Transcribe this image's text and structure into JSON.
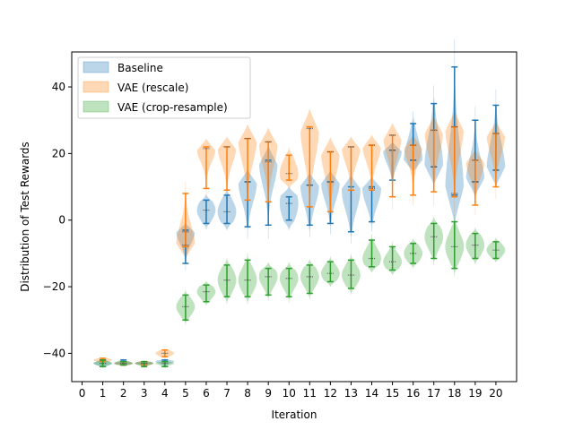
{
  "chart_data": {
    "type": "violin",
    "xlabel": "Iteration",
    "ylabel": "Distribution of Test Rewards",
    "xlim": [
      -0.5,
      21.0
    ],
    "ylim": [
      -48.5,
      50.5
    ],
    "x_ticks": [
      0,
      1,
      2,
      3,
      4,
      5,
      6,
      7,
      8,
      9,
      10,
      11,
      12,
      13,
      14,
      15,
      16,
      17,
      18,
      19,
      20
    ],
    "y_ticks": [
      -40,
      -20,
      0,
      20,
      40
    ],
    "grid": false,
    "legend_position": "top-left",
    "series": [
      {
        "name": "Baseline",
        "color": "#1f77b4",
        "offset": 0.0,
        "iterations": [
          1,
          2,
          3,
          4,
          5,
          6,
          7,
          8,
          9,
          10,
          11,
          12,
          13,
          14,
          15,
          16,
          17,
          18,
          19,
          20
        ],
        "min": [
          -44.0,
          -43.5,
          -43.5,
          -44.0,
          -13.0,
          -1.0,
          -1.0,
          -2.0,
          -1.5,
          0.0,
          -1.5,
          -1.0,
          -3.5,
          -0.5,
          12.0,
          18.0,
          16.0,
          7.5,
          11.5,
          15.0
        ],
        "median": [
          -43.0,
          -43.0,
          -43.0,
          -42.5,
          -3.5,
          3.0,
          2.5,
          11.5,
          17.5,
          5.0,
          10.5,
          11.5,
          9.0,
          9.5,
          21.0,
          18.0,
          16.0,
          8.0,
          11.5,
          15.0
        ],
        "max": [
          -42.0,
          -42.0,
          -42.5,
          -42.0,
          -3.0,
          6.0,
          7.5,
          11.5,
          18.0,
          7.0,
          10.5,
          11.5,
          10.0,
          10.0,
          21.0,
          29.0,
          35.0,
          46.0,
          30.0,
          34.5
        ],
        "spread": [
          0.6,
          0.6,
          0.5,
          0.6,
          3.5,
          3.0,
          3.5,
          6.0,
          7.0,
          5.0,
          6.0,
          5.5,
          6.0,
          5.0,
          4.0,
          6.0,
          9.0,
          14.0,
          7.0,
          8.0
        ]
      },
      {
        "name": "VAE (rescale)",
        "color": "#ff7f0e",
        "offset": 0.0,
        "iterations": [
          1,
          2,
          3,
          4,
          5,
          6,
          7,
          8,
          9,
          10,
          11,
          12,
          13,
          14,
          15,
          16,
          17,
          18,
          19,
          20
        ],
        "min": [
          -42.5,
          -43.5,
          -43.5,
          -41.0,
          -8.0,
          9.5,
          9.0,
          6.0,
          5.5,
          12.0,
          4.0,
          2.5,
          9.0,
          9.0,
          7.0,
          7.5,
          8.5,
          7.0,
          4.5,
          10.0
        ],
        "median": [
          -42.0,
          -43.0,
          -43.0,
          -40.0,
          -7.5,
          21.5,
          22.0,
          24.5,
          23.5,
          14.0,
          27.5,
          20.5,
          22.0,
          22.5,
          25.5,
          22.5,
          27.0,
          28.0,
          18.0,
          26.0
        ],
        "max": [
          -41.5,
          -42.5,
          -42.5,
          -39.0,
          8.0,
          22.0,
          22.0,
          24.5,
          23.5,
          19.5,
          28.0,
          20.5,
          22.0,
          22.5,
          25.5,
          22.5,
          27.0,
          28.0,
          18.0,
          26.0
        ],
        "spread": [
          0.5,
          0.5,
          0.5,
          0.8,
          6.0,
          4.0,
          5.0,
          7.0,
          7.0,
          4.0,
          9.0,
          7.0,
          5.0,
          5.0,
          6.0,
          5.0,
          7.0,
          8.0,
          5.0,
          6.0
        ]
      },
      {
        "name": "VAE (crop-resample)",
        "color": "#2ca02c",
        "offset": 0.0,
        "iterations": [
          1,
          2,
          3,
          4,
          5,
          6,
          7,
          8,
          9,
          10,
          11,
          12,
          13,
          14,
          15,
          16,
          17,
          18,
          19,
          20
        ],
        "min": [
          -44.0,
          -43.5,
          -44.0,
          -44.0,
          -30.0,
          -24.5,
          -23.0,
          -23.0,
          -22.5,
          -23.0,
          -22.0,
          -18.5,
          -20.5,
          -14.0,
          -15.0,
          -13.0,
          -11.5,
          -14.5,
          -11.5,
          -11.5
        ],
        "median": [
          -43.0,
          -43.0,
          -43.0,
          -43.0,
          -26.0,
          -21.5,
          -18.0,
          -18.0,
          -17.0,
          -17.5,
          -17.0,
          -16.0,
          -16.5,
          -11.5,
          -12.5,
          -10.0,
          -5.0,
          -8.0,
          -7.5,
          -9.0
        ],
        "max": [
          -42.0,
          -42.5,
          -42.5,
          -42.5,
          -22.5,
          -19.5,
          -13.5,
          -12.0,
          -14.5,
          -14.5,
          -13.5,
          -12.5,
          -12.0,
          -6.0,
          -8.0,
          -7.0,
          -1.0,
          -0.5,
          -4.0,
          -6.5
        ],
        "spread": [
          0.6,
          0.5,
          0.5,
          0.5,
          2.5,
          2.0,
          3.5,
          3.5,
          3.0,
          3.0,
          3.0,
          2.5,
          3.0,
          3.0,
          2.5,
          2.5,
          3.5,
          4.0,
          3.0,
          2.0
        ]
      }
    ]
  }
}
